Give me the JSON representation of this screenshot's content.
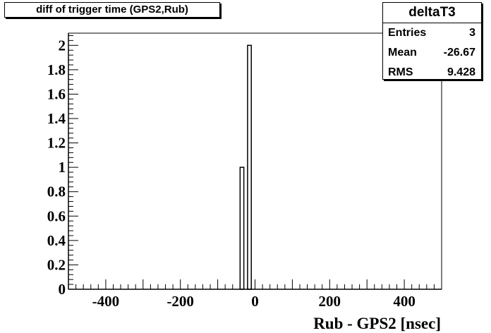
{
  "title": "diff of trigger time (GPS2,Rub)",
  "stats": {
    "name": "deltaT3",
    "rows": [
      {
        "label": "Entries",
        "value": "3"
      },
      {
        "label": "Mean",
        "value": "-26.67"
      },
      {
        "label": "RMS",
        "value": "9.428"
      }
    ]
  },
  "chart_data": {
    "type": "bar",
    "xlabel": "Rub - GPS2 [nsec]",
    "ylabel": "",
    "xlim": [
      -500,
      500
    ],
    "ylim": [
      0,
      2.1
    ],
    "x_ticks": [
      -400,
      -200,
      0,
      200,
      400
    ],
    "y_ticks": [
      0,
      0.2,
      0.4,
      0.6,
      0.8,
      1,
      1.2,
      1.4,
      1.6,
      1.8,
      2
    ],
    "bin_width": 10,
    "bins": [
      {
        "x_low": -40,
        "x_high": -30,
        "count": 1
      },
      {
        "x_low": -20,
        "x_high": -10,
        "count": 2
      }
    ]
  }
}
